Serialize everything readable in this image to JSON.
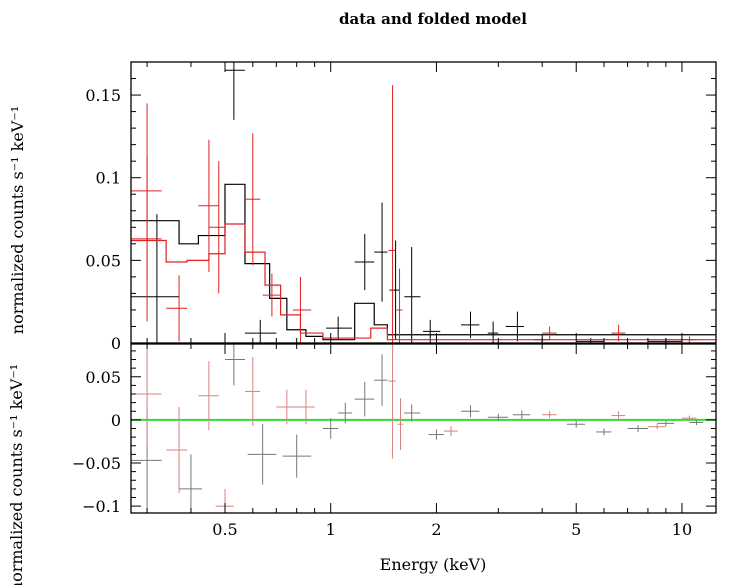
{
  "chart_data": [
    {
      "type": "scatter",
      "panel": "top",
      "title": "data and folded model",
      "xlabel": "",
      "ylabel": "normalized counts s⁻¹ keV⁻¹",
      "xscale": "log",
      "xlim": [
        0.27,
        12.5
      ],
      "ylim": [
        0,
        0.17
      ],
      "yticks": [
        0,
        0.05,
        0.1,
        0.15
      ],
      "yticklabels": [
        "0",
        "0.05",
        "0.1",
        "0.15"
      ],
      "grid": false,
      "colors": {
        "black_series": "#000000",
        "red_series": "#e02020"
      },
      "series": [
        {
          "color": "black",
          "style": "errorbar",
          "points": [
            {
              "x": 0.32,
              "xlo": 0.27,
              "xhi": 0.37,
              "y": 0.028,
              "err": 0.05
            },
            {
              "x": 0.53,
              "xlo": 0.5,
              "xhi": 0.57,
              "y": 0.165,
              "err": 0.03
            },
            {
              "x": 0.63,
              "xlo": 0.57,
              "xhi": 0.7,
              "y": 0.006,
              "err": 0.008
            },
            {
              "x": 1.05,
              "xlo": 0.97,
              "xhi": 1.15,
              "y": 0.009,
              "err": 0.007
            },
            {
              "x": 1.25,
              "xlo": 1.17,
              "xhi": 1.33,
              "y": 0.049,
              "err": 0.017
            },
            {
              "x": 1.4,
              "xlo": 1.33,
              "xhi": 1.45,
              "y": 0.055,
              "err": 0.03
            },
            {
              "x": 1.53,
              "xlo": 1.47,
              "xhi": 1.57,
              "y": 0.032,
              "err": 0.03
            },
            {
              "x": 1.7,
              "xlo": 1.62,
              "xhi": 1.8,
              "y": 0.028,
              "err": 0.03
            },
            {
              "x": 1.92,
              "xlo": 1.83,
              "xhi": 2.05,
              "y": 0.007,
              "err": 0.007
            },
            {
              "x": 2.5,
              "xlo": 2.35,
              "xhi": 2.65,
              "y": 0.011,
              "err": 0.008
            },
            {
              "x": 2.9,
              "xlo": 2.8,
              "xhi": 3.0,
              "y": 0.006,
              "err": 0.007
            },
            {
              "x": 3.4,
              "xlo": 3.15,
              "xhi": 3.55,
              "y": 0.01,
              "err": 0.009
            },
            {
              "x": 4.0,
              "xlo": 3.8,
              "xhi": 4.2,
              "y": 0.002,
              "err": 0.003
            },
            {
              "x": 5.5,
              "xlo": 5.0,
              "xhi": 6.0,
              "y": 0.001,
              "err": 0.002
            },
            {
              "x": 9.0,
              "xlo": 8.0,
              "xhi": 10.0,
              "y": 0.001,
              "err": 0.002
            }
          ],
          "model_steps": [
            [
              0.27,
              0.074
            ],
            [
              0.32,
              0.074
            ],
            [
              0.37,
              0.06
            ],
            [
              0.42,
              0.065
            ],
            [
              0.5,
              0.096
            ],
            [
              0.57,
              0.048
            ],
            [
              0.67,
              0.027
            ],
            [
              0.75,
              0.008
            ],
            [
              0.85,
              0.004
            ],
            [
              0.95,
              0.002
            ],
            [
              1.17,
              0.024
            ],
            [
              1.33,
              0.011
            ],
            [
              1.45,
              0.005
            ],
            [
              12.5,
              0.005
            ]
          ]
        },
        {
          "color": "red",
          "style": "errorbar",
          "points": [
            {
              "x": 0.3,
              "xlo": 0.27,
              "xhi": 0.33,
              "y": 0.092,
              "err": 0.053
            },
            {
              "x": 0.3,
              "xlo": 0.27,
              "xhi": 0.33,
              "y": 0.063,
              "err": 0.05
            },
            {
              "x": 0.37,
              "xlo": 0.34,
              "xhi": 0.39,
              "y": 0.021,
              "err": 0.02
            },
            {
              "x": 0.45,
              "xlo": 0.42,
              "xhi": 0.48,
              "y": 0.083,
              "err": 0.04
            },
            {
              "x": 0.48,
              "xlo": 0.45,
              "xhi": 0.5,
              "y": 0.07,
              "err": 0.04
            },
            {
              "x": 0.6,
              "xlo": 0.57,
              "xhi": 0.63,
              "y": 0.087,
              "err": 0.04
            },
            {
              "x": 0.68,
              "xlo": 0.64,
              "xhi": 0.72,
              "y": 0.029,
              "err": 0.013
            },
            {
              "x": 0.82,
              "xlo": 0.78,
              "xhi": 0.88,
              "y": 0.02,
              "err": 0.02
            },
            {
              "x": 1.5,
              "xlo": 1.46,
              "xhi": 1.53,
              "y": 0.056,
              "err": 0.1
            },
            {
              "x": 1.57,
              "xlo": 1.54,
              "xhi": 1.6,
              "y": 0.02,
              "err": 0.025
            },
            {
              "x": 4.2,
              "xlo": 4.0,
              "xhi": 4.4,
              "y": 0.006,
              "err": 0.004
            },
            {
              "x": 6.6,
              "xlo": 6.3,
              "xhi": 6.9,
              "y": 0.006,
              "err": 0.005
            },
            {
              "x": 10.5,
              "xlo": 10.0,
              "xhi": 11.0,
              "y": 0.002,
              "err": 0.002
            }
          ],
          "model_steps": [
            [
              0.27,
              0.062
            ],
            [
              0.34,
              0.049
            ],
            [
              0.39,
              0.05
            ],
            [
              0.45,
              0.054
            ],
            [
              0.5,
              0.072
            ],
            [
              0.57,
              0.055
            ],
            [
              0.65,
              0.035
            ],
            [
              0.72,
              0.017
            ],
            [
              0.82,
              0.006
            ],
            [
              0.95,
              0.003
            ],
            [
              1.3,
              0.009
            ],
            [
              1.45,
              0.002
            ],
            [
              12.5,
              0.002
            ]
          ]
        }
      ]
    },
    {
      "type": "scatter",
      "panel": "bottom",
      "xlabel": "Energy (keV)",
      "ylabel": "normalized counts s⁻¹ keV⁻¹",
      "xscale": "log",
      "xlim": [
        0.27,
        12.5
      ],
      "ylim": [
        -0.108,
        0.088
      ],
      "xticks": [
        0.5,
        1,
        2,
        5,
        10
      ],
      "xticklabels": [
        "0.5",
        "1",
        "2",
        "5",
        "10"
      ],
      "yticks": [
        -0.1,
        -0.05,
        0,
        0.05
      ],
      "yticklabels": [
        "−0.1",
        "−0.05",
        "0",
        "0.05"
      ],
      "grid": false,
      "colors": {
        "black_series": "#777777",
        "red_series": "#d88080",
        "zero_line": "#33dd33"
      },
      "reference_line": {
        "y": 0
      },
      "series": [
        {
          "color": "gray",
          "points": [
            {
              "x": 0.3,
              "xlo": 0.27,
              "xhi": 0.33,
              "y": -0.047,
              "err": 0.06
            },
            {
              "x": 0.4,
              "xlo": 0.37,
              "xhi": 0.43,
              "y": -0.08,
              "err": 0.04
            },
            {
              "x": 0.53,
              "xlo": 0.5,
              "xhi": 0.57,
              "y": 0.07,
              "err": 0.03
            },
            {
              "x": 0.64,
              "xlo": 0.58,
              "xhi": 0.7,
              "y": -0.04,
              "err": 0.035
            },
            {
              "x": 0.8,
              "xlo": 0.73,
              "xhi": 0.88,
              "y": -0.042,
              "err": 0.025
            },
            {
              "x": 1.0,
              "xlo": 0.95,
              "xhi": 1.05,
              "y": -0.01,
              "err": 0.012
            },
            {
              "x": 1.1,
              "xlo": 1.05,
              "xhi": 1.15,
              "y": 0.008,
              "err": 0.012
            },
            {
              "x": 1.25,
              "xlo": 1.17,
              "xhi": 1.33,
              "y": 0.024,
              "err": 0.02
            },
            {
              "x": 1.4,
              "xlo": 1.33,
              "xhi": 1.45,
              "y": 0.046,
              "err": 0.03
            },
            {
              "x": 1.7,
              "xlo": 1.62,
              "xhi": 1.8,
              "y": 0.008,
              "err": 0.01
            },
            {
              "x": 2.0,
              "xlo": 1.9,
              "xhi": 2.1,
              "y": -0.017,
              "err": 0.006
            },
            {
              "x": 2.5,
              "xlo": 2.35,
              "xhi": 2.65,
              "y": 0.01,
              "err": 0.007
            },
            {
              "x": 3.0,
              "xlo": 2.8,
              "xhi": 3.2,
              "y": 0.003,
              "err": 0.004
            },
            {
              "x": 3.5,
              "xlo": 3.3,
              "xhi": 3.7,
              "y": 0.006,
              "err": 0.005
            },
            {
              "x": 5.0,
              "xlo": 4.7,
              "xhi": 5.3,
              "y": -0.005,
              "err": 0.004
            },
            {
              "x": 6.0,
              "xlo": 5.7,
              "xhi": 6.3,
              "y": -0.014,
              "err": 0.004
            },
            {
              "x": 7.5,
              "xlo": 7.0,
              "xhi": 8.0,
              "y": -0.01,
              "err": 0.004
            },
            {
              "x": 9.0,
              "xlo": 8.5,
              "xhi": 9.5,
              "y": -0.004,
              "err": 0.003
            },
            {
              "x": 11.0,
              "xlo": 10.5,
              "xhi": 11.5,
              "y": -0.003,
              "err": 0.003
            }
          ]
        },
        {
          "color": "pink",
          "points": [
            {
              "x": 0.3,
              "xlo": 0.27,
              "xhi": 0.33,
              "y": 0.03,
              "err": 0.06
            },
            {
              "x": 0.37,
              "xlo": 0.34,
              "xhi": 0.39,
              "y": -0.035,
              "err": 0.05
            },
            {
              "x": 0.45,
              "xlo": 0.42,
              "xhi": 0.48,
              "y": 0.028,
              "err": 0.04
            },
            {
              "x": 0.5,
              "xlo": 0.47,
              "xhi": 0.53,
              "y": -0.1,
              "err": 0.02
            },
            {
              "x": 0.6,
              "xlo": 0.57,
              "xhi": 0.63,
              "y": 0.033,
              "err": 0.04
            },
            {
              "x": 0.75,
              "xlo": 0.7,
              "xhi": 0.8,
              "y": 0.015,
              "err": 0.02
            },
            {
              "x": 0.85,
              "xlo": 0.8,
              "xhi": 0.9,
              "y": 0.015,
              "err": 0.02
            },
            {
              "x": 1.5,
              "xlo": 1.46,
              "xhi": 1.53,
              "y": 0.045,
              "err": 0.09
            },
            {
              "x": 1.58,
              "xlo": 1.55,
              "xhi": 1.61,
              "y": -0.005,
              "err": 0.03
            },
            {
              "x": 2.2,
              "xlo": 2.1,
              "xhi": 2.3,
              "y": -0.013,
              "err": 0.006
            },
            {
              "x": 4.2,
              "xlo": 4.0,
              "xhi": 4.4,
              "y": 0.006,
              "err": 0.004
            },
            {
              "x": 6.6,
              "xlo": 6.3,
              "xhi": 6.9,
              "y": 0.005,
              "err": 0.005
            },
            {
              "x": 8.5,
              "xlo": 8.0,
              "xhi": 9.0,
              "y": -0.008,
              "err": 0.003
            },
            {
              "x": 10.5,
              "xlo": 10.0,
              "xhi": 11.0,
              "y": 0.002,
              "err": 0.003
            }
          ]
        }
      ]
    }
  ]
}
